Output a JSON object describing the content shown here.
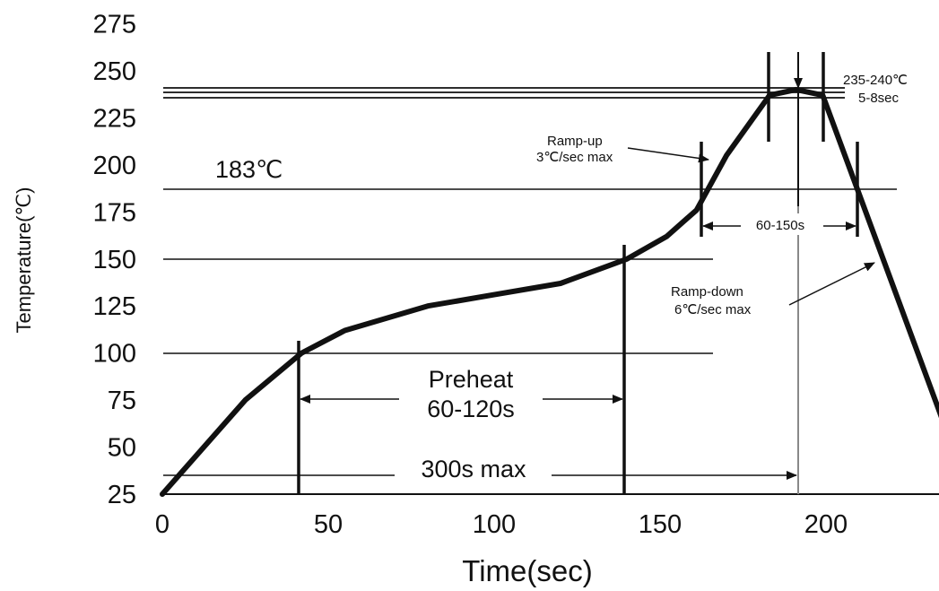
{
  "chart_data": {
    "type": "line",
    "xlabel": "Time(sec)",
    "ylabel": "Temperature(℃)",
    "xlim": [
      0,
      235
    ],
    "ylim": [
      25,
      275
    ],
    "x_ticks": [
      0,
      50,
      100,
      150,
      200
    ],
    "y_ticks": [
      25,
      50,
      75,
      100,
      125,
      150,
      175,
      200,
      225,
      250,
      275
    ],
    "grid": false,
    "series": [
      {
        "x": [
          0,
          25,
          42,
          55,
          80,
          100,
          120,
          140,
          152,
          161,
          170,
          183,
          191,
          199,
          235
        ],
        "y": [
          25,
          75,
          100,
          112,
          125,
          131,
          137,
          150,
          162,
          176,
          205,
          237,
          240,
          237,
          65
        ]
      }
    ],
    "reference_lines": [
      {
        "y": 236
      },
      {
        "y": 239
      },
      {
        "y": 241
      },
      {
        "y": 187
      },
      {
        "y": 150
      },
      {
        "y": 100
      },
      {
        "y": 36
      }
    ],
    "annotations": {
      "peak_label": "235-240℃",
      "peak_time": "5-8sec",
      "ramp_up_1": "Ramp-up",
      "ramp_up_2": "3℃/sec max",
      "line_183": "183℃",
      "above_liquidus": "60-150s",
      "ramp_down_1": "Ramp-down",
      "ramp_down_2": "6℃/sec max",
      "preheat_1": "Preheat",
      "preheat_2": "60-120s",
      "total": "300s max"
    }
  }
}
